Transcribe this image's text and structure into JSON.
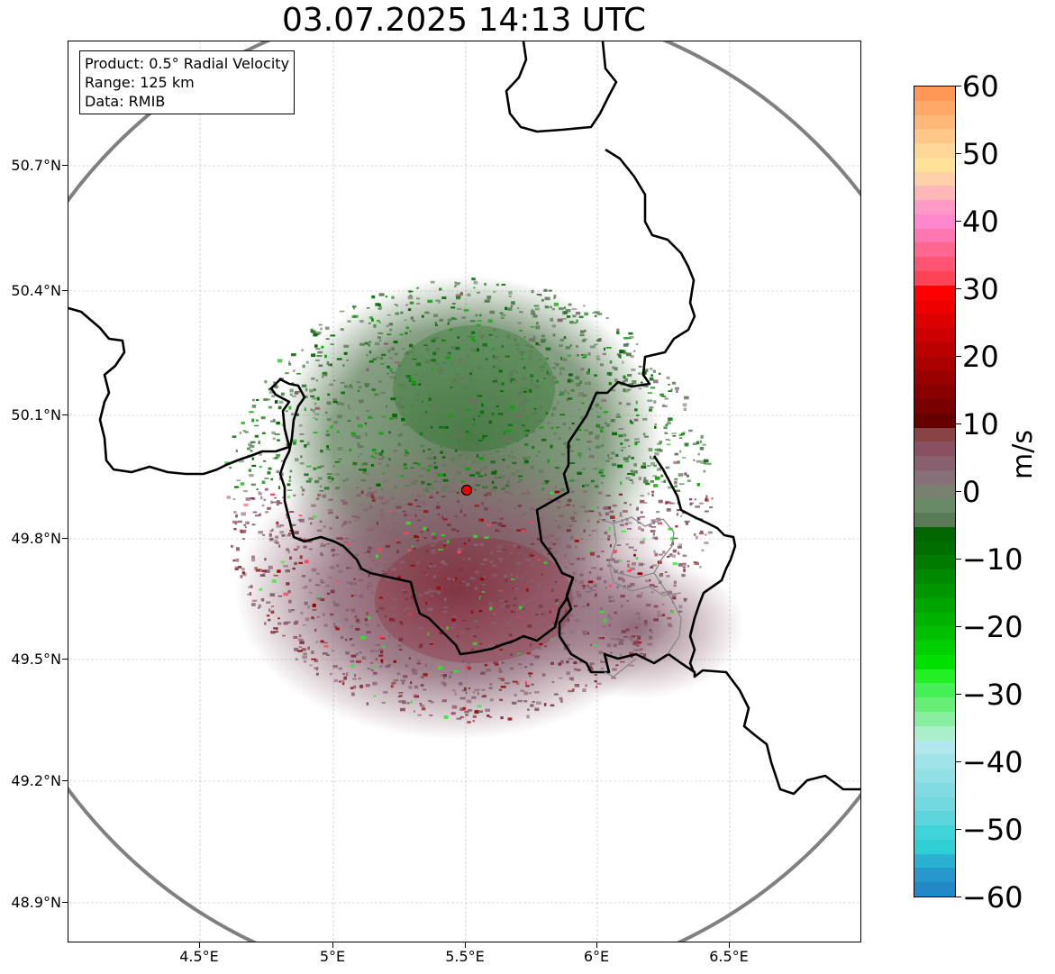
{
  "title": "03.07.2025 14:13 UTC",
  "info": {
    "product": "Product: 0.5° Radial Velocity",
    "range": "Range: 125 km",
    "source": "Data: RMIB"
  },
  "latitude_ticks": [
    "50.7°N",
    "50.4°N",
    "50.1°N",
    "49.8°N",
    "49.5°N",
    "49.2°N",
    "48.9°N"
  ],
  "longitude_ticks": [
    "4.5°E",
    "5°E",
    "5.5°E",
    "6°E",
    "6.5°E"
  ],
  "colorbar": {
    "label": "m/s",
    "ticks": [
      "60",
      "50",
      "40",
      "30",
      "20",
      "10",
      "0",
      "−10",
      "−20",
      "−30",
      "−40",
      "−50",
      "−60"
    ],
    "range": [
      -60,
      60
    ],
    "colors_top_to_bottom": [
      "#ff9955",
      "#ffa866",
      "#ffb877",
      "#ffc788",
      "#ffd799",
      "#ffe199",
      "#ffd1a8",
      "#ffb7b7",
      "#ff99c8",
      "#ff88cc",
      "#ff77b0",
      "#ff6690",
      "#ff5575",
      "#ff4458",
      "#ff0000",
      "#ee0000",
      "#dd0000",
      "#cc0000",
      "#bb0000",
      "#aa0000",
      "#990000",
      "#880000",
      "#770000",
      "#660000",
      "#884444",
      "#885060",
      "#886070",
      "#887078",
      "#7a8070",
      "#688a66",
      "#5a7a55",
      "#006600",
      "#006e00",
      "#007a00",
      "#008800",
      "#009600",
      "#00a400",
      "#00b200",
      "#00c000",
      "#00d000",
      "#00e000",
      "#22f022",
      "#44f055",
      "#66ee77",
      "#88eea0",
      "#aaeecc",
      "#b0e8ee",
      "#a0e4ea",
      "#90e0e6",
      "#80dce2",
      "#70d8de",
      "#5cd6dc",
      "#40d4da",
      "#30cfd6",
      "#2ab0d0",
      "#2698cc",
      "#2288c8"
    ]
  },
  "radar": {
    "location": {
      "lon": 5.505,
      "lat": 49.915
    },
    "range_km": 125,
    "colors": {
      "approaching": "#5a7a55",
      "receding": "#886070",
      "strong_receding": "#990000",
      "strong_approaching": "#006600",
      "ring": "#808080"
    }
  }
}
